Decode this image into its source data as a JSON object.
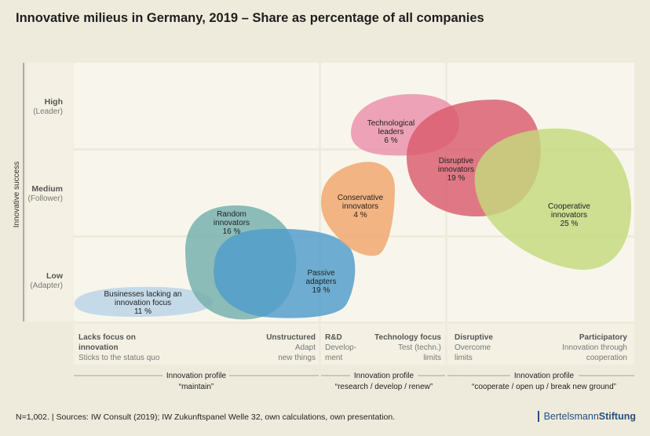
{
  "chart_data": {
    "type": "bubble-map",
    "title": "Innovative milieus in Germany, 2019 – Share as percentage of all companies",
    "ylabel": "Innovative success",
    "y_levels": [
      {
        "main": "High",
        "sub": "(Leader)"
      },
      {
        "main": "Medium",
        "sub": "(Follower)"
      },
      {
        "main": "Low",
        "sub": "(Adapter)"
      }
    ],
    "x_columns": [
      {
        "left_title": "Lacks focus on",
        "left_title2": "innovation",
        "left_sub": "Sticks to the status quo",
        "right_title": "Unstructured",
        "right_sub1": "Adapt",
        "right_sub2": "new things"
      },
      {
        "left_title": "R&D",
        "left_sub1": "Develop-",
        "left_sub2": "ment",
        "right_title": "Technology focus",
        "right_sub1": "Test (techn.)",
        "right_sub2": "limits"
      },
      {
        "left_title": "Disruptive",
        "left_sub1": "Overcome",
        "left_sub2": "limits",
        "right_title": "Participatory",
        "right_sub1": "Innovation through",
        "right_sub2": "cooperation"
      }
    ],
    "profiles": [
      {
        "label": "Innovation profile",
        "quote": "“maintain”"
      },
      {
        "label": "Innovation profile",
        "quote": "“research / develop / renew”"
      },
      {
        "label": "Innovation profile",
        "quote": "“cooperate / open up / break new ground”"
      }
    ],
    "series": [
      {
        "name_lines": [
          "Businesses lacking an",
          "innovation focus"
        ],
        "value": 11,
        "value_label": "11 %",
        "color": "#b9d3e6"
      },
      {
        "name_lines": [
          "Random",
          "innovators"
        ],
        "value": 16,
        "value_label": "16 %",
        "color": "#74aeab"
      },
      {
        "name_lines": [
          "Passive",
          "adapters"
        ],
        "value": 19,
        "value_label": "19 %",
        "color": "#4f9ccb"
      },
      {
        "name_lines": [
          "Conservative",
          "innovators"
        ],
        "value": 4,
        "value_label": "4 %",
        "color": "#f0a56a"
      },
      {
        "name_lines": [
          "Technological",
          "leaders"
        ],
        "value": 6,
        "value_label": "6 %",
        "color": "#ec8fab"
      },
      {
        "name_lines": [
          "Disruptive",
          "innovators"
        ],
        "value": 19,
        "value_label": "19 %",
        "color": "#d95b6c"
      },
      {
        "name_lines": [
          "Cooperative",
          "innovators"
        ],
        "value": 25,
        "value_label": "25 %",
        "color": "#c4d97c"
      }
    ]
  },
  "footer": {
    "source": "N=1,002.  |  Sources: IW Consult (2019); IW Zukunftspanel Welle 32, own calculations, own presentation.",
    "brand_light": "Bertelsmann",
    "brand_bold": "Stiftung"
  }
}
